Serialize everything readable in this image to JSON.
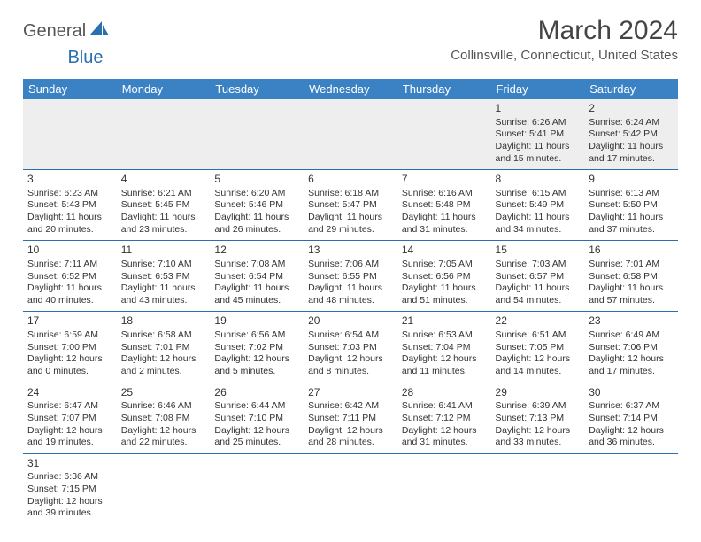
{
  "logo": {
    "text1": "General",
    "text2": "Blue"
  },
  "title": "March 2024",
  "location": "Collinsville, Connecticut, United States",
  "colors": {
    "header_bg": "#3a82c4",
    "header_text": "#ffffff",
    "row_border": "#2a6fb0",
    "first_row_bg": "#eeeeee",
    "text": "#333333"
  },
  "weekdays": [
    "Sunday",
    "Monday",
    "Tuesday",
    "Wednesday",
    "Thursday",
    "Friday",
    "Saturday"
  ],
  "weeks": [
    [
      null,
      null,
      null,
      null,
      null,
      {
        "n": "1",
        "sunrise": "6:26 AM",
        "sunset": "5:41 PM",
        "dayl1": "11 hours",
        "dayl2": "and 15 minutes."
      },
      {
        "n": "2",
        "sunrise": "6:24 AM",
        "sunset": "5:42 PM",
        "dayl1": "11 hours",
        "dayl2": "and 17 minutes."
      }
    ],
    [
      {
        "n": "3",
        "sunrise": "6:23 AM",
        "sunset": "5:43 PM",
        "dayl1": "11 hours",
        "dayl2": "and 20 minutes."
      },
      {
        "n": "4",
        "sunrise": "6:21 AM",
        "sunset": "5:45 PM",
        "dayl1": "11 hours",
        "dayl2": "and 23 minutes."
      },
      {
        "n": "5",
        "sunrise": "6:20 AM",
        "sunset": "5:46 PM",
        "dayl1": "11 hours",
        "dayl2": "and 26 minutes."
      },
      {
        "n": "6",
        "sunrise": "6:18 AM",
        "sunset": "5:47 PM",
        "dayl1": "11 hours",
        "dayl2": "and 29 minutes."
      },
      {
        "n": "7",
        "sunrise": "6:16 AM",
        "sunset": "5:48 PM",
        "dayl1": "11 hours",
        "dayl2": "and 31 minutes."
      },
      {
        "n": "8",
        "sunrise": "6:15 AM",
        "sunset": "5:49 PM",
        "dayl1": "11 hours",
        "dayl2": "and 34 minutes."
      },
      {
        "n": "9",
        "sunrise": "6:13 AM",
        "sunset": "5:50 PM",
        "dayl1": "11 hours",
        "dayl2": "and 37 minutes."
      }
    ],
    [
      {
        "n": "10",
        "sunrise": "7:11 AM",
        "sunset": "6:52 PM",
        "dayl1": "11 hours",
        "dayl2": "and 40 minutes."
      },
      {
        "n": "11",
        "sunrise": "7:10 AM",
        "sunset": "6:53 PM",
        "dayl1": "11 hours",
        "dayl2": "and 43 minutes."
      },
      {
        "n": "12",
        "sunrise": "7:08 AM",
        "sunset": "6:54 PM",
        "dayl1": "11 hours",
        "dayl2": "and 45 minutes."
      },
      {
        "n": "13",
        "sunrise": "7:06 AM",
        "sunset": "6:55 PM",
        "dayl1": "11 hours",
        "dayl2": "and 48 minutes."
      },
      {
        "n": "14",
        "sunrise": "7:05 AM",
        "sunset": "6:56 PM",
        "dayl1": "11 hours",
        "dayl2": "and 51 minutes."
      },
      {
        "n": "15",
        "sunrise": "7:03 AM",
        "sunset": "6:57 PM",
        "dayl1": "11 hours",
        "dayl2": "and 54 minutes."
      },
      {
        "n": "16",
        "sunrise": "7:01 AM",
        "sunset": "6:58 PM",
        "dayl1": "11 hours",
        "dayl2": "and 57 minutes."
      }
    ],
    [
      {
        "n": "17",
        "sunrise": "6:59 AM",
        "sunset": "7:00 PM",
        "dayl1": "12 hours",
        "dayl2": "and 0 minutes."
      },
      {
        "n": "18",
        "sunrise": "6:58 AM",
        "sunset": "7:01 PM",
        "dayl1": "12 hours",
        "dayl2": "and 2 minutes."
      },
      {
        "n": "19",
        "sunrise": "6:56 AM",
        "sunset": "7:02 PM",
        "dayl1": "12 hours",
        "dayl2": "and 5 minutes."
      },
      {
        "n": "20",
        "sunrise": "6:54 AM",
        "sunset": "7:03 PM",
        "dayl1": "12 hours",
        "dayl2": "and 8 minutes."
      },
      {
        "n": "21",
        "sunrise": "6:53 AM",
        "sunset": "7:04 PM",
        "dayl1": "12 hours",
        "dayl2": "and 11 minutes."
      },
      {
        "n": "22",
        "sunrise": "6:51 AM",
        "sunset": "7:05 PM",
        "dayl1": "12 hours",
        "dayl2": "and 14 minutes."
      },
      {
        "n": "23",
        "sunrise": "6:49 AM",
        "sunset": "7:06 PM",
        "dayl1": "12 hours",
        "dayl2": "and 17 minutes."
      }
    ],
    [
      {
        "n": "24",
        "sunrise": "6:47 AM",
        "sunset": "7:07 PM",
        "dayl1": "12 hours",
        "dayl2": "and 19 minutes."
      },
      {
        "n": "25",
        "sunrise": "6:46 AM",
        "sunset": "7:08 PM",
        "dayl1": "12 hours",
        "dayl2": "and 22 minutes."
      },
      {
        "n": "26",
        "sunrise": "6:44 AM",
        "sunset": "7:10 PM",
        "dayl1": "12 hours",
        "dayl2": "and 25 minutes."
      },
      {
        "n": "27",
        "sunrise": "6:42 AM",
        "sunset": "7:11 PM",
        "dayl1": "12 hours",
        "dayl2": "and 28 minutes."
      },
      {
        "n": "28",
        "sunrise": "6:41 AM",
        "sunset": "7:12 PM",
        "dayl1": "12 hours",
        "dayl2": "and 31 minutes."
      },
      {
        "n": "29",
        "sunrise": "6:39 AM",
        "sunset": "7:13 PM",
        "dayl1": "12 hours",
        "dayl2": "and 33 minutes."
      },
      {
        "n": "30",
        "sunrise": "6:37 AM",
        "sunset": "7:14 PM",
        "dayl1": "12 hours",
        "dayl2": "and 36 minutes."
      }
    ],
    [
      {
        "n": "31",
        "sunrise": "6:36 AM",
        "sunset": "7:15 PM",
        "dayl1": "12 hours",
        "dayl2": "and 39 minutes."
      },
      null,
      null,
      null,
      null,
      null,
      null
    ]
  ],
  "labels": {
    "sunrise": "Sunrise: ",
    "sunset": "Sunset: ",
    "daylight": "Daylight: "
  }
}
